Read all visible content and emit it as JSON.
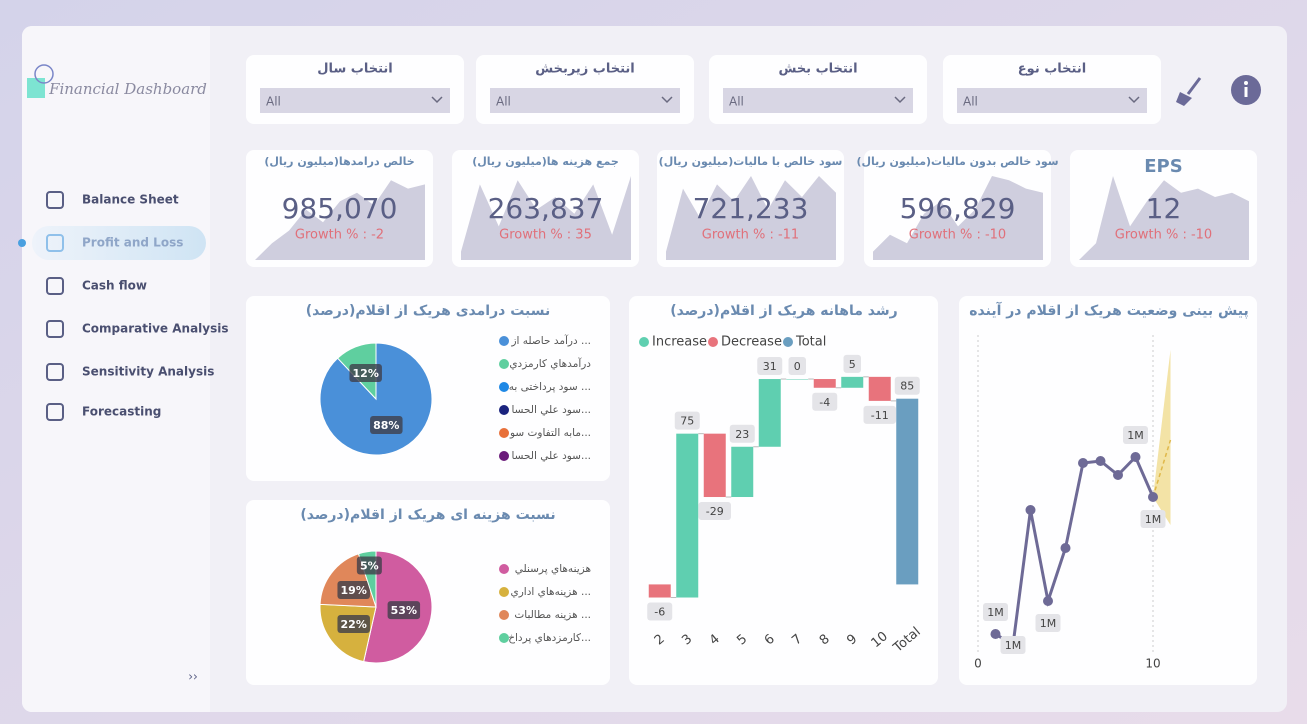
{
  "sidebar": {
    "title": "Financial Dashboard",
    "items": [
      "Balance Sheet",
      "Profit and Loss",
      "Cash flow",
      "Comparative Analysis",
      "Sensitivity Analysis",
      "Forecasting"
    ],
    "collapse": "››"
  },
  "filters": [
    {
      "label": "انتخاب نوع",
      "value": "All"
    },
    {
      "label": "انتخاب بخش",
      "value": "All"
    },
    {
      "label": "انتخاب زیربخش",
      "value": "All"
    },
    {
      "label": "انتخاب سال",
      "value": "All"
    }
  ],
  "kpis": [
    {
      "title": "خالص درامدها(میلیون ریال)",
      "value": "985,070",
      "growth": "Growth % : -2",
      "sparkline": [
        0,
        20,
        35,
        60,
        45,
        70,
        80,
        65,
        95,
        85,
        90
      ]
    },
    {
      "title": "جمع هزینه ها(میلیون ریال)",
      "value": "263,837",
      "growth": "Growth % : 35",
      "sparkline": [
        10,
        90,
        40,
        95,
        60,
        75,
        55,
        90,
        30,
        100
      ]
    },
    {
      "title": "سود خالص با مالیات(میلیون ریال)",
      "value": "721,233",
      "growth": "Growth % : -11",
      "sparkline": [
        10,
        85,
        50,
        90,
        70,
        100,
        60,
        95,
        75,
        100,
        80
      ]
    },
    {
      "title": "سود خالص بدون مالیات(میلیون ریال)",
      "value": "596,829",
      "growth": "Growth % : -10",
      "sparkline": [
        10,
        30,
        20,
        55,
        70,
        40,
        60,
        100,
        95,
        85,
        80
      ]
    },
    {
      "title": "EPS",
      "value": "12",
      "growth": "Growth % : -10",
      "sparkline": [
        0,
        20,
        100,
        40,
        70,
        95,
        80,
        85,
        75,
        80,
        70
      ]
    }
  ],
  "chart_data": [
    {
      "type": "pie",
      "title": "نسبت درامدی هریک از اقلام(درصد)",
      "categories": [
        "درآمد حاصله از ...",
        "درآمدهاي كارمزدي",
        "سود پرداختی به ...",
        "سود علي الحسا...",
        "مابه التفاوت سو...",
        "سود علي الحسا..."
      ],
      "values": [
        88,
        12,
        0,
        0,
        0,
        0
      ],
      "value_labels": [
        "88%",
        "12%",
        null,
        null,
        null,
        null
      ],
      "colors": [
        "#4a90d9",
        "#5fcf9f",
        "#1e88e5",
        "#1a237e",
        "#e8703a",
        "#6a1b7a"
      ]
    },
    {
      "type": "pie",
      "title": "نسبت هزینه ای هریک از اقلام(درصد)",
      "categories": [
        "هزينه‌هاي پرسنلي",
        "هزينه‌هاي اداري ...",
        "هزينه مطالبات ...",
        "كارمزدهاي پرداخ..."
      ],
      "values": [
        53,
        22,
        19,
        5
      ],
      "value_labels": [
        "53%",
        "22%",
        "19%",
        "5%"
      ],
      "colors": [
        "#d05ca0",
        "#d6b13e",
        "#e0875a",
        "#5fcf9f"
      ]
    },
    {
      "type": "waterfall",
      "title": "رشد ماهانه هریک از اقلام(درصد)",
      "categories": [
        "2",
        "3",
        "4",
        "5",
        "6",
        "7",
        "8",
        "9",
        "10",
        "Total"
      ],
      "values": [
        -6,
        75,
        -29,
        23,
        31,
        0,
        -4,
        5,
        -11,
        85
      ],
      "measures": [
        "relative",
        "relative",
        "relative",
        "relative",
        "relative",
        "relative",
        "relative",
        "relative",
        "relative",
        "total"
      ],
      "legend": [
        {
          "name": "Increase",
          "color": "#5fcfb0"
        },
        {
          "name": "Decrease",
          "color": "#e8737c"
        },
        {
          "name": "Total",
          "color": "#6a9ec0"
        }
      ],
      "ylim": [
        -14,
        105
      ]
    },
    {
      "type": "line",
      "title": "پیش بینی وضعیت هریک از اقلام در آینده",
      "x": [
        1,
        2,
        3,
        4,
        5,
        6,
        7,
        8,
        9,
        10
      ],
      "values": [
        889000,
        872500,
        1075000,
        938500,
        1018000,
        1145500,
        1148500,
        1127500,
        1154500,
        1094500
      ],
      "value_labels": [
        "1M",
        "1M",
        null,
        "1M",
        null,
        null,
        null,
        null,
        "1M",
        "1M"
      ],
      "color": "#6e6a96",
      "forecast": {
        "x": [
          10,
          11
        ],
        "values": [
          1094500,
          1180000
        ],
        "upper": [
          1094500,
          1315000
        ],
        "lower": [
          1094500,
          1052500
        ],
        "color": "#f0dc90",
        "line_color": "#e0b84a"
      },
      "xlim": [
        0,
        15
      ],
      "xticks": [
        0,
        10
      ],
      "ylim": [
        857500,
        1330000
      ],
      "grid": true
    }
  ]
}
